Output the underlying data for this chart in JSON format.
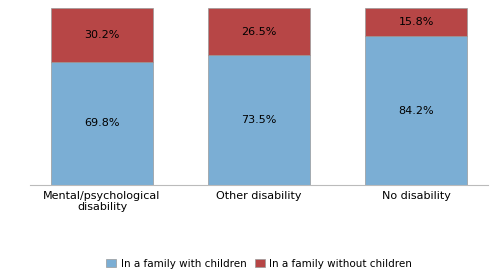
{
  "categories": [
    "Mental/psychological\ndisability",
    "Other disability",
    "No disability"
  ],
  "with_children": [
    69.8,
    73.5,
    84.2
  ],
  "without_children": [
    30.2,
    26.5,
    15.8
  ],
  "color_with": "#7BAED4",
  "color_without": "#B74646",
  "legend_with": "In a family with children",
  "legend_without": "In a family without children",
  "ylim": [
    0,
    100
  ],
  "bar_width": 0.65,
  "label_fontsize": 8,
  "legend_fontsize": 7.5,
  "tick_fontsize": 8,
  "background_color": "#ffffff"
}
